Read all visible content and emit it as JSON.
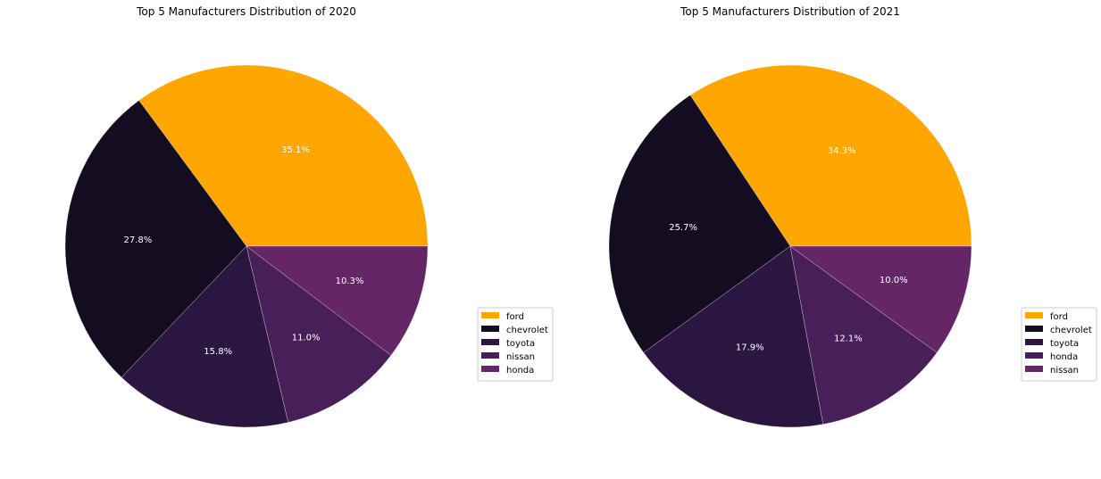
{
  "chart_data": [
    {
      "type": "pie",
      "title": "Top 5 Manufacturers Distribution of 2020",
      "labels": [
        "ford",
        "chevrolet",
        "toyota",
        "nissan",
        "honda"
      ],
      "values": [
        35.1,
        27.8,
        15.8,
        11.0,
        10.3
      ],
      "value_labels": [
        "35.1%",
        "27.8%",
        "15.8%",
        "11.0%",
        "10.3%"
      ],
      "colors": [
        "#ffa600",
        "#140d22",
        "#2b1641",
        "#491f5a",
        "#652668"
      ],
      "start_angle_deg": 0,
      "direction": "counterclockwise",
      "legend_position": "center-right"
    },
    {
      "type": "pie",
      "title": "Top 5 Manufacturers Distribution of 2021",
      "labels": [
        "ford",
        "chevrolet",
        "toyota",
        "honda",
        "nissan"
      ],
      "values": [
        34.3,
        25.7,
        17.9,
        12.1,
        10.0
      ],
      "value_labels": [
        "34.3%",
        "25.7%",
        "17.9%",
        "12.1%",
        "10.0%"
      ],
      "colors": [
        "#ffa600",
        "#140d22",
        "#2b1641",
        "#491f5a",
        "#652668"
      ],
      "start_angle_deg": 0,
      "direction": "counterclockwise",
      "legend_position": "center-right"
    }
  ]
}
